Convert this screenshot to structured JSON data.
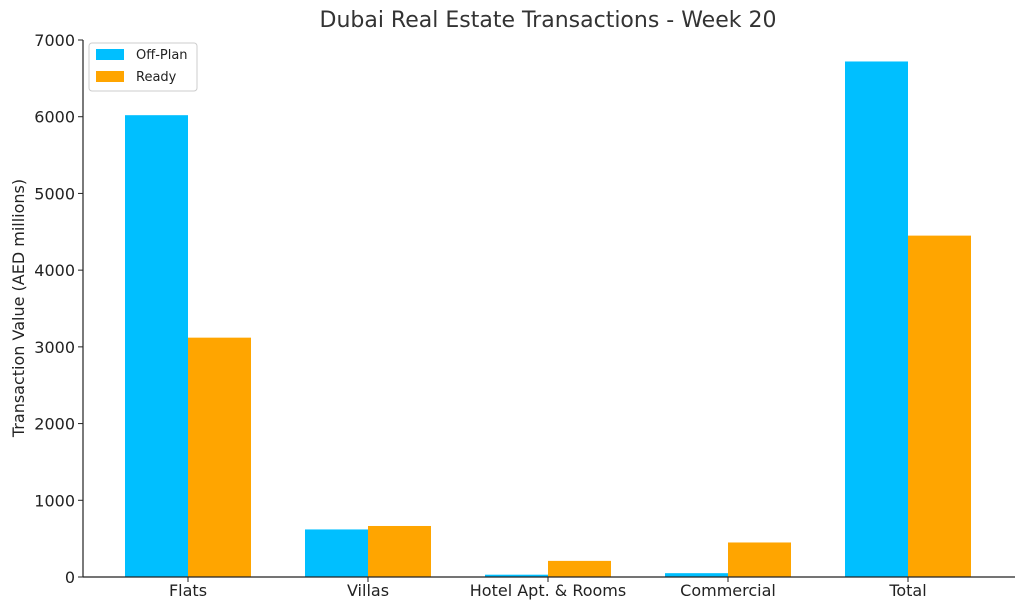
{
  "chart_data": {
    "type": "bar",
    "title": "Dubai Real Estate Transactions - Week 20",
    "xlabel": "",
    "ylabel": "Transaction Value (AED millions)",
    "categories": [
      "Flats",
      "Villas",
      "Hotel Apt. & Rooms",
      "Commercial",
      "Total"
    ],
    "series": [
      {
        "name": "Off-Plan",
        "color": "#00BFFF",
        "values": [
          6020,
          620,
          30,
          50,
          6720
        ]
      },
      {
        "name": "Ready",
        "color": "#FFA500",
        "values": [
          3120,
          665,
          210,
          450,
          4450
        ]
      }
    ],
    "ylim": [
      0,
      7000
    ],
    "yticks": [
      0,
      1000,
      2000,
      3000,
      4000,
      5000,
      6000,
      7000
    ],
    "grid": false,
    "legend_position": "top-left"
  }
}
